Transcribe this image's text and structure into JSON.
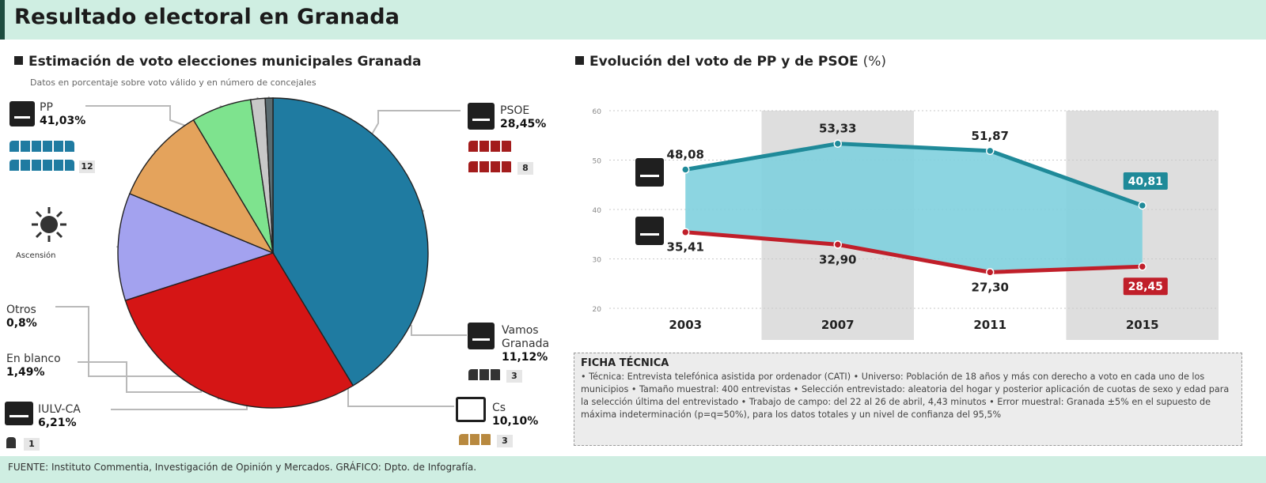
{
  "header": {
    "title": "Resultado electoral en Granada"
  },
  "pie_section": {
    "title": "Estimación de voto elecciones municipales Granada",
    "subtitle": "Datos en porcentaje sobre voto válido y en número de concejales"
  },
  "line_section": {
    "title": "Evolución del voto de PP y de PSOE",
    "unit": "(%)"
  },
  "pollster": {
    "caption": "Ascensión"
  },
  "ficha": {
    "title": "FICHA TÉCNICA",
    "text": "• Técnica: Entrevista telefónica asistida por ordenador (CATI) • Universo: Población de 18 años y más con derecho a voto en cada uno de los municipios • Tamaño muestral: 400 entrevistas • Selección entrevistado: aleatoria del hogar y posterior aplicación de cuotas de sexo y edad para la selección última del entrevistado • Trabajo de campo: del 22 al 26 de abril, 4,43 minutos • Error muestral: Granada ±5% en el supuesto de máxima indeterminación (p=q=50%), para los datos totales y un nivel de confianza del 95,5%"
  },
  "footer": {
    "text": "FUENTE: Instituto Commentia, Investigación de Opinión y Mercados. GRÁFICO: Dpto. de Infografía."
  },
  "chart_data": [
    {
      "type": "pie",
      "slices": [
        {
          "label": "PP",
          "value": 41.03,
          "value_label": "41,03%",
          "seats": 12,
          "color": "#1f7ba1"
        },
        {
          "label": "PSOE",
          "value": 28.45,
          "value_label": "28,45%",
          "seats": 8,
          "color": "#d51515"
        },
        {
          "label": "Vamos Granada",
          "value": 11.12,
          "value_label": "11,12%",
          "seats": 3,
          "color": "#a3a2ef"
        },
        {
          "label": "Cs",
          "value": 10.1,
          "value_label": "10,10%",
          "seats": 3,
          "color": "#e4a35c"
        },
        {
          "label": "IULV-CA",
          "value": 6.21,
          "value_label": "6,21%",
          "seats": 1,
          "color": "#7ee38e"
        },
        {
          "label": "En blanco",
          "value": 1.49,
          "value_label": "1,49%",
          "seats": null,
          "color": "#c8c8c8"
        },
        {
          "label": "Otros",
          "value": 0.8,
          "value_label": "0,8%",
          "seats": null,
          "color": "#5a6b70"
        }
      ]
    },
    {
      "type": "line",
      "x": [
        "2003",
        "2007",
        "2011",
        "2015"
      ],
      "series": [
        {
          "name": "PP",
          "values": [
            48.08,
            53.33,
            51.87,
            40.81
          ],
          "labels": [
            "48,08",
            "53,33",
            "51,87",
            "40,81"
          ],
          "color": "#1f8a99"
        },
        {
          "name": "PSOE",
          "values": [
            35.41,
            32.9,
            27.3,
            28.45
          ],
          "labels": [
            "35,41",
            "32,90",
            "27,30",
            "28,45"
          ],
          "color": "#c01f2a"
        }
      ],
      "ylim": [
        20,
        60
      ],
      "yticks": [
        20,
        30,
        40,
        50,
        60
      ],
      "ytick_labels": [
        "20",
        "30",
        "40",
        "50",
        "60"
      ],
      "shaded_years": [
        "2007",
        "2015"
      ],
      "fill_between": true
    }
  ]
}
